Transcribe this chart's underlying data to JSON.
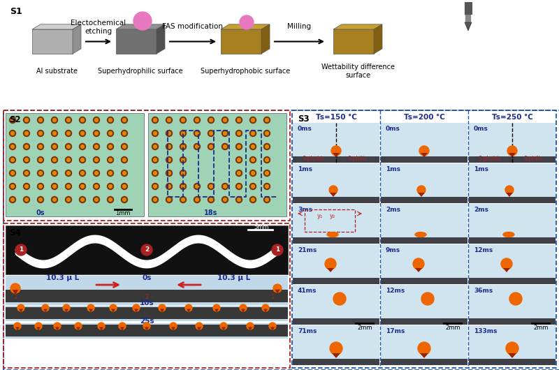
{
  "bg_color": "#f0f0f0",
  "s1_label": "S1",
  "s2_label": "S2",
  "s3_label": "S3",
  "s4_label": "S4",
  "s1_step_labels": [
    "Electochemical\netching",
    "FAS modification",
    "Milling"
  ],
  "s1_obj_labels": [
    "Al substrate",
    "Superhydrophilic surface",
    "Superhydrophobic surface",
    "Wettability difference\nsurface"
  ],
  "s3_temps": [
    "Ts=150 °C",
    "Ts=200 °C",
    "Ts=250 °C"
  ],
  "s3_times_col1": [
    "0ms",
    "1ms",
    "3ms",
    "21ms",
    "41ms",
    "71ms"
  ],
  "s3_times_col2": [
    "0ms",
    "1ms",
    "2ms",
    "9ms",
    "12ms",
    "17ms"
  ],
  "s3_times_col3": [
    "0ms",
    "1ms",
    "2ms",
    "12ms",
    "36ms",
    "133ms"
  ],
  "s4_droplet_label": "10.3 μ L",
  "border_red": "#aa2222",
  "border_blue": "#2255aa",
  "text_blue": "#1a2a8c",
  "text_red": "#bb2222",
  "arrow_red": "#cc2222",
  "s2_bg": "#8ecfb0",
  "s2_dot_outer": "#7a3010",
  "s2_dot_inner": "#dd8800",
  "s4_bg_black": "#111111",
  "s4_channel_color": "#ffffff",
  "s4_panel_bg": "#c0d8e8",
  "s4_bar_dark": "#383838",
  "s3_panel_bg": "#d0e4f0",
  "s3_bar_dark": "#404048",
  "drop_dark": "#992200",
  "drop_bright": "#ee6600",
  "s1_cube1_top": "#d0d0d0",
  "s1_cube1_front": "#b0b0b0",
  "s1_cube1_side": "#909090",
  "s1_cube2_top": "#909090",
  "s1_cube2_front": "#707070",
  "s1_cube2_side": "#505050",
  "s1_cube3_top": "#c8a030",
  "s1_cube3_front": "#a88020",
  "s1_cube3_side": "#806010",
  "pink_drop": "#e878c0"
}
